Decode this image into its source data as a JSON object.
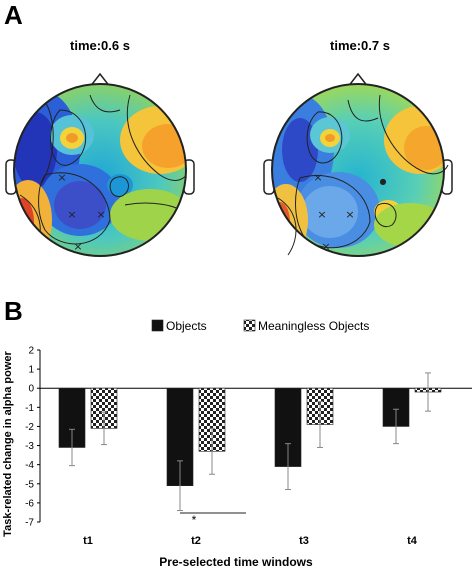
{
  "panels": {
    "a": {
      "letter": "A",
      "topomaps": [
        {
          "title": "time:0.6 s"
        },
        {
          "title": "time:0.7 s"
        }
      ]
    },
    "b": {
      "letter": "B"
    }
  },
  "chart_data": {
    "type": "bar",
    "title": "",
    "xlabel": "Pre-selected time windows",
    "ylabel": "Task-related change in alpha power",
    "categories": [
      "t1",
      "t2",
      "t3",
      "t4"
    ],
    "ylim": [
      -7,
      2
    ],
    "yticks": [
      2,
      1,
      0,
      -1,
      -2,
      -3,
      -4,
      -5,
      -6,
      -7
    ],
    "grid": false,
    "legend": "top-center",
    "series": [
      {
        "name": "Objects",
        "fill": "#111111",
        "pattern": "solid",
        "values": [
          -3.1,
          -5.1,
          -4.1,
          -2.0
        ],
        "errors": [
          0.95,
          1.3,
          1.2,
          0.9
        ]
      },
      {
        "name": "Meaningless Objects",
        "fill": "#ffffff",
        "pattern": "checker",
        "values": [
          -2.1,
          -3.3,
          -1.9,
          -0.2
        ],
        "errors": [
          0.85,
          1.2,
          1.2,
          1.0
        ]
      }
    ],
    "annotations": [
      {
        "text": "*",
        "category": "t2"
      }
    ]
  },
  "colors": {
    "axis": "#000000",
    "objects": "#111111",
    "meaningless": "#ffffff",
    "error_bar": "#888888"
  }
}
